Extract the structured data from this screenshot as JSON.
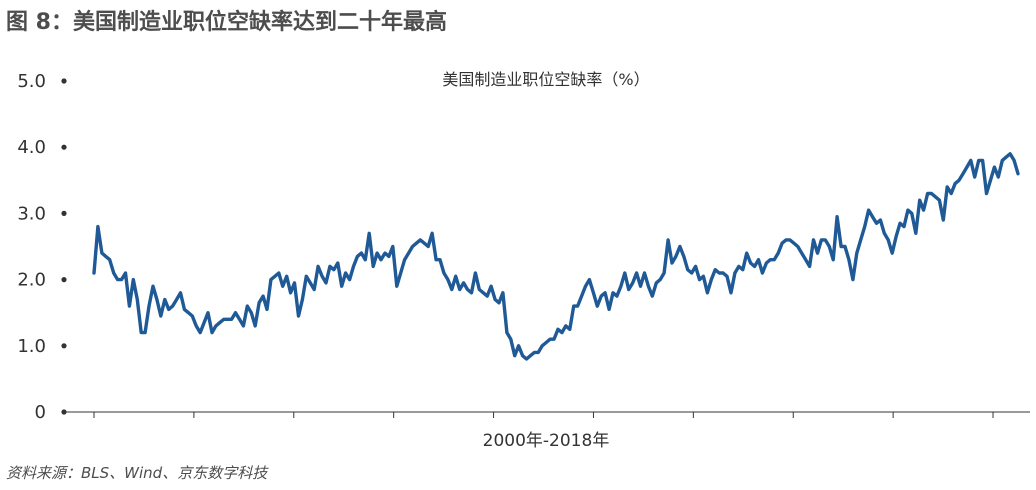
{
  "figure": {
    "title": "图 8：美国制造业职位空缺率达到二十年最高",
    "source": "资料来源：BLS、Wind、京东数字科技",
    "accent_color": "#1f5a96"
  },
  "chart_data": {
    "type": "line",
    "title": "美国制造业职位空缺率（%）",
    "xlabel": "2000年-2018年",
    "ylabel": "",
    "ylim": [
      0,
      5
    ],
    "xlim": [
      0,
      222
    ],
    "yticks": [
      0,
      1.0,
      2.0,
      3.0,
      4.0,
      5.0
    ],
    "ytick_labels": [
      "0",
      "1.0",
      "2.0",
      "3.0",
      "4.0",
      "5.0"
    ],
    "x_tick_positions": [
      0,
      24,
      48,
      72,
      96,
      120,
      144,
      168,
      192,
      216
    ],
    "grid": false,
    "series": [
      {
        "name": "美国制造业职位空缺率（%）",
        "color": "#1f5a96",
        "values": [
          2.1,
          2.8,
          2.4,
          2.35,
          2.3,
          2.1,
          2.0,
          2.0,
          2.1,
          1.6,
          2.0,
          1.7,
          1.2,
          1.2,
          1.6,
          1.9,
          1.7,
          1.45,
          1.7,
          1.55,
          1.6,
          1.7,
          1.8,
          1.55,
          1.5,
          1.45,
          1.3,
          1.2,
          1.35,
          1.5,
          1.2,
          1.3,
          1.35,
          1.4,
          1.4,
          1.4,
          1.5,
          1.4,
          1.3,
          1.6,
          1.5,
          1.3,
          1.65,
          1.75,
          1.55,
          2.0,
          2.05,
          2.1,
          1.9,
          2.05,
          1.8,
          1.95,
          1.45,
          1.7,
          2.05,
          1.95,
          1.85,
          2.2,
          2.05,
          1.95,
          2.2,
          2.15,
          2.25,
          1.9,
          2.1,
          2.0,
          2.2,
          2.35,
          2.4,
          2.3,
          2.7,
          2.2,
          2.4,
          2.3,
          2.4,
          2.35,
          2.5,
          1.9,
          2.1,
          2.3,
          2.4,
          2.5,
          2.55,
          2.6,
          2.55,
          2.5,
          2.7,
          2.3,
          2.3,
          2.1,
          2.0,
          1.85,
          2.05,
          1.85,
          1.95,
          1.85,
          1.8,
          2.1,
          1.85,
          1.8,
          1.75,
          1.9,
          1.7,
          1.65,
          1.8,
          1.2,
          1.1,
          0.85,
          1.0,
          0.85,
          0.8,
          0.85,
          0.9,
          0.9,
          1.0,
          1.05,
          1.1,
          1.1,
          1.25,
          1.2,
          1.3,
          1.25,
          1.6,
          1.6,
          1.75,
          1.9,
          2.0,
          1.8,
          1.6,
          1.75,
          1.8,
          1.55,
          1.8,
          1.75,
          1.9,
          2.1,
          1.85,
          1.95,
          2.1,
          1.9,
          2.1,
          1.9,
          1.75,
          1.95,
          2.0,
          2.1,
          2.6,
          2.25,
          2.35,
          2.5,
          2.35,
          2.15,
          2.1,
          2.2,
          2.0,
          2.05,
          1.8,
          2.0,
          2.15,
          2.1,
          2.1,
          2.05,
          1.8,
          2.1,
          2.2,
          2.15,
          2.4,
          2.25,
          2.2,
          2.3,
          2.1,
          2.25,
          2.3,
          2.3,
          2.4,
          2.55,
          2.6,
          2.6,
          2.55,
          2.5,
          2.4,
          2.3,
          2.2,
          2.6,
          2.4,
          2.6,
          2.6,
          2.5,
          2.3,
          2.95,
          2.5,
          2.5,
          2.3,
          2.0,
          2.4,
          2.6,
          2.8,
          3.05,
          2.95,
          2.85,
          2.9,
          2.7,
          2.6,
          2.4,
          2.65,
          2.85,
          2.8,
          3.05,
          3.0,
          2.7,
          3.2,
          3.05,
          3.3,
          3.3,
          3.25,
          3.2,
          2.9,
          3.4,
          3.3,
          3.45,
          3.5,
          3.6,
          3.7,
          3.8,
          3.55,
          3.8,
          3.8,
          3.3,
          3.5,
          3.7,
          3.55,
          3.8,
          3.85,
          3.9,
          3.8,
          3.6
        ]
      }
    ]
  }
}
